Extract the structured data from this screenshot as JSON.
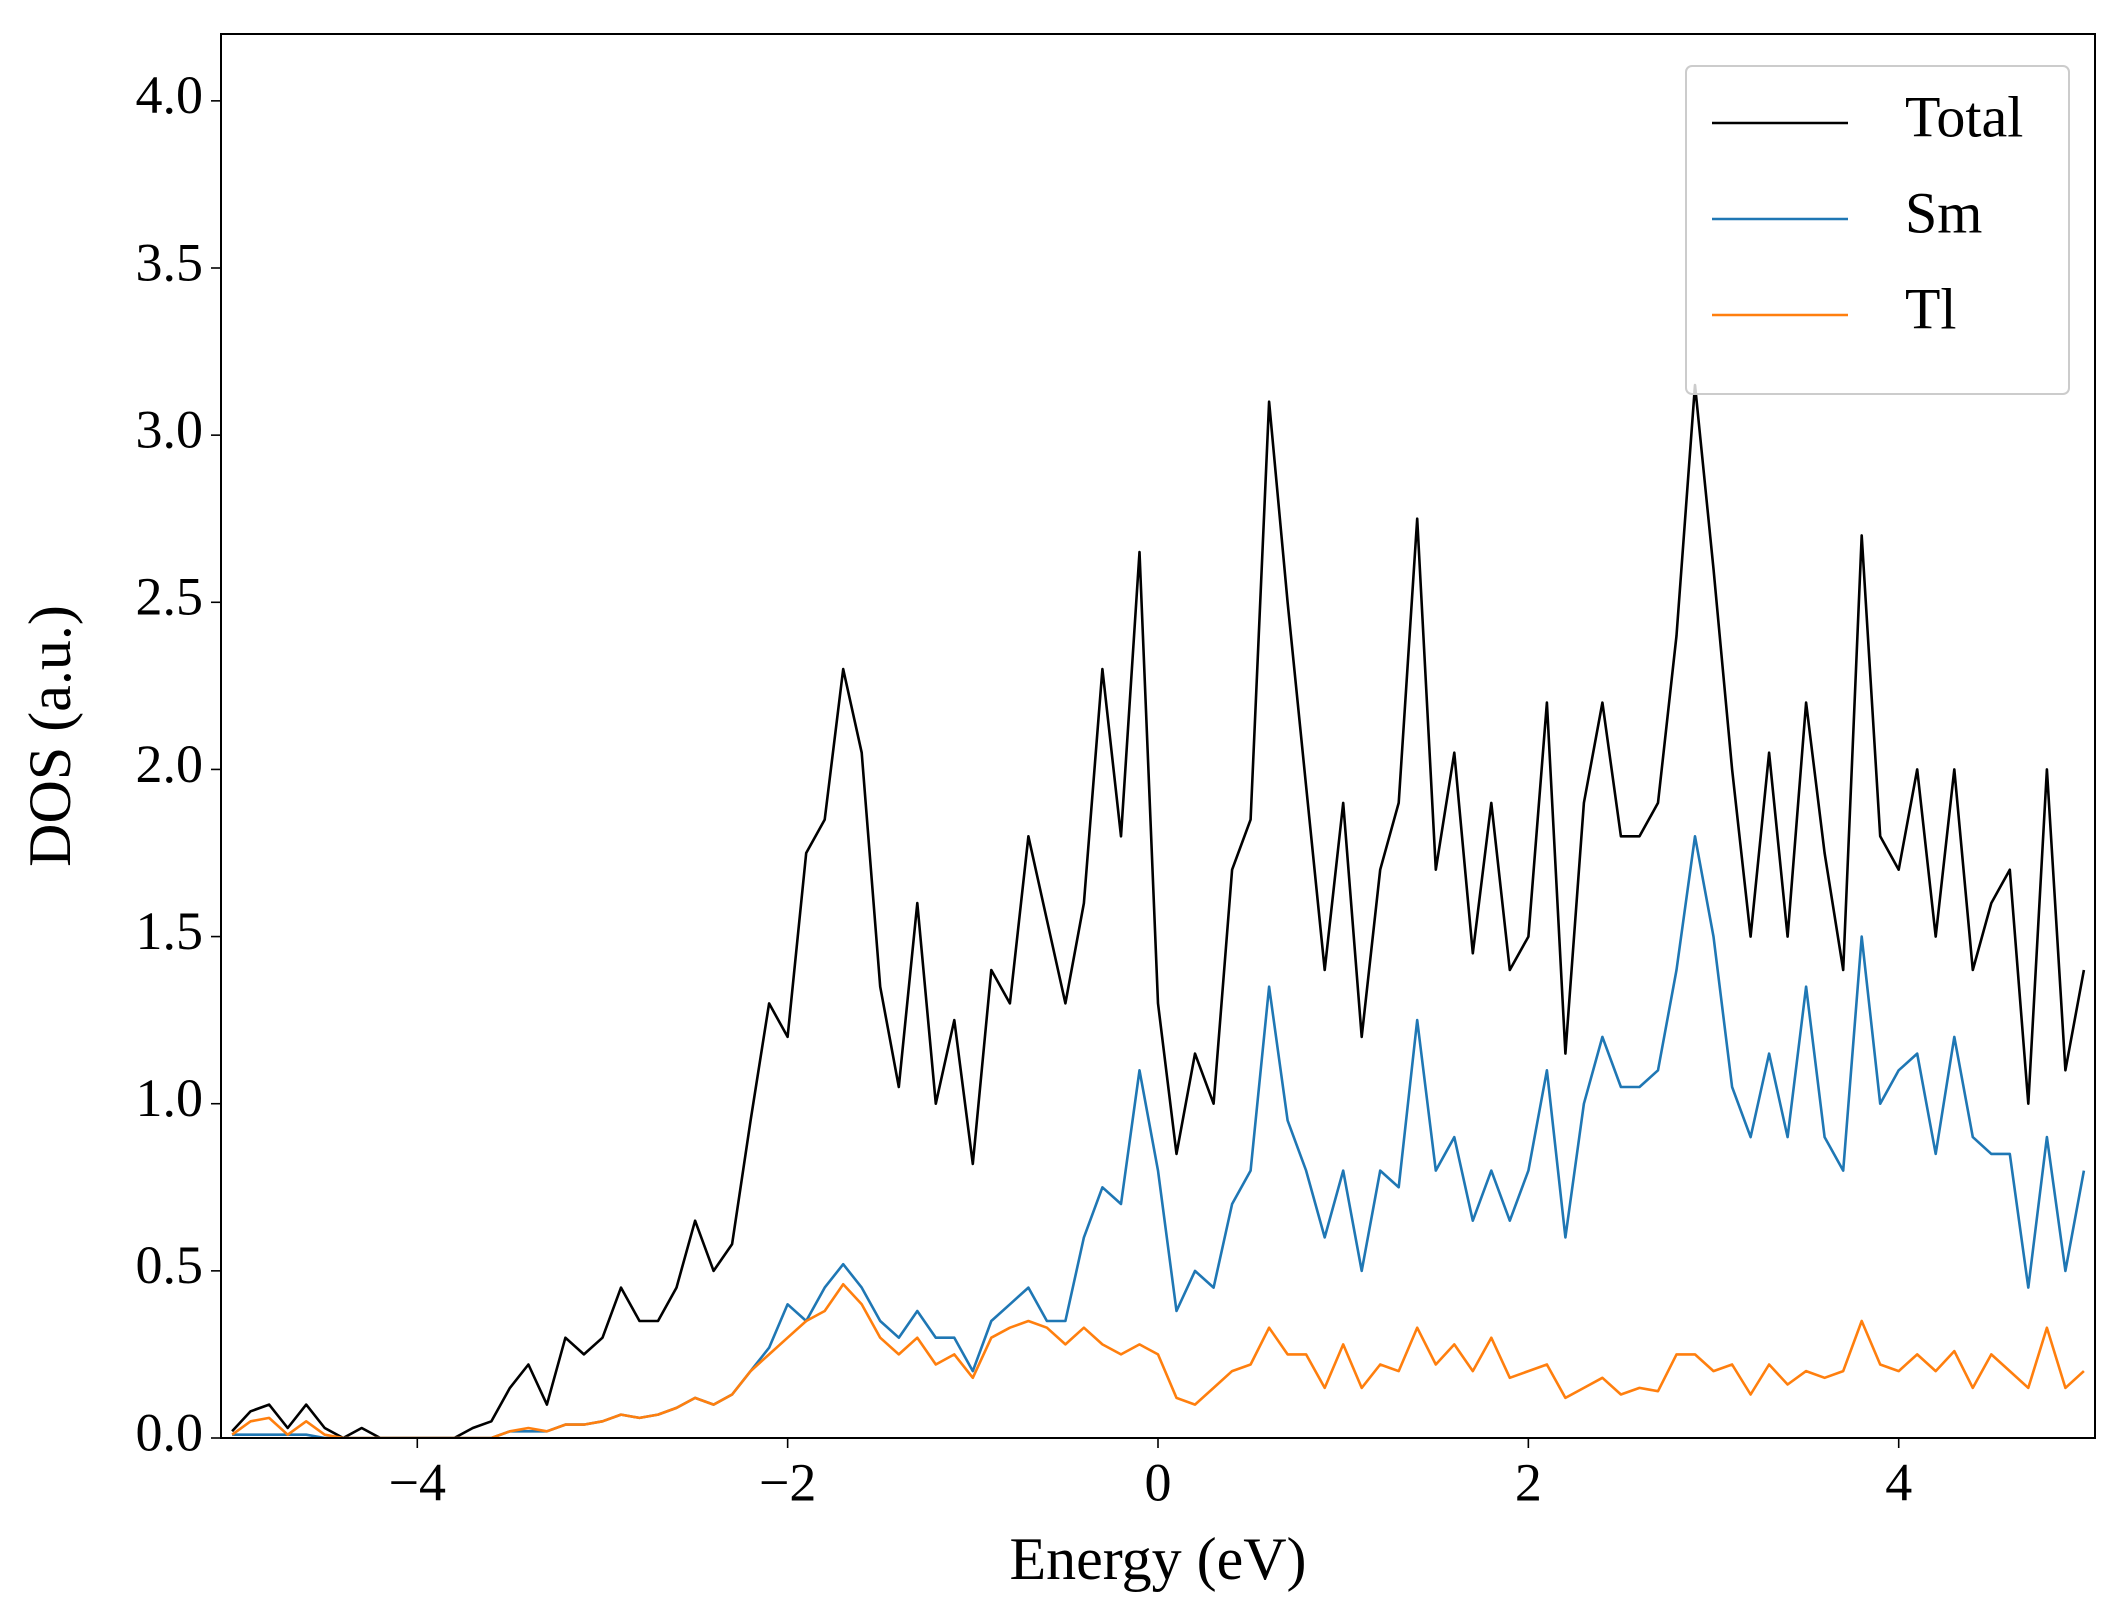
{
  "chart_data": {
    "type": "line",
    "xlabel": "Energy (eV)",
    "ylabel": "DOS (a.u.)",
    "x": [
      -5,
      -4.9,
      -4.8,
      -4.7,
      -4.6,
      -4.5,
      -4.4,
      -4.3,
      -4.2,
      -4.1,
      -4,
      -3.9,
      -3.8,
      -3.7,
      -3.6,
      -3.5,
      -3.4,
      -3.3,
      -3.2,
      -3.1,
      -3,
      -2.9,
      -2.8,
      -2.7,
      -2.6,
      -2.5,
      -2.4,
      -2.3,
      -2.2,
      -2.1,
      -2,
      -1.9,
      -1.8,
      -1.7,
      -1.6,
      -1.5,
      -1.4,
      -1.3,
      -1.2,
      -1.1,
      -1,
      -0.9,
      -0.8,
      -0.7,
      -0.6,
      -0.5,
      -0.4,
      -0.3,
      -0.2,
      -0.1,
      0,
      0.1,
      0.2,
      0.3,
      0.4,
      0.5,
      0.6,
      0.7,
      0.8,
      0.9,
      1,
      1.1,
      1.2,
      1.3,
      1.4,
      1.5,
      1.6,
      1.7,
      1.8,
      1.9,
      2,
      2.1,
      2.2,
      2.3,
      2.4,
      2.5,
      2.6,
      2.7,
      2.8,
      2.9,
      3,
      3.1,
      3.2,
      3.3,
      3.4,
      3.5,
      3.6,
      3.7,
      3.8,
      3.9,
      4,
      4.1,
      4.2,
      4.3,
      4.4,
      4.5,
      4.6,
      4.7,
      4.8,
      4.9,
      5
    ],
    "series": [
      {
        "name": "Total",
        "color": "#000000",
        "values": [
          0.02,
          0.08,
          0.1,
          0.03,
          0.1,
          0.03,
          0,
          0.03,
          0,
          0,
          0,
          0,
          0,
          0.03,
          0.05,
          0.15,
          0.22,
          0.1,
          0.3,
          0.25,
          0.3,
          0.45,
          0.35,
          0.35,
          0.45,
          0.65,
          0.5,
          0.58,
          0.95,
          1.3,
          1.2,
          1.75,
          1.85,
          2.3,
          2.05,
          1.35,
          1.05,
          1.6,
          1.0,
          1.25,
          0.82,
          1.4,
          1.3,
          1.8,
          1.55,
          1.3,
          1.6,
          2.3,
          1.8,
          2.65,
          1.3,
          0.85,
          1.15,
          1.0,
          1.7,
          1.85,
          3.1,
          2.5,
          1.95,
          1.4,
          1.9,
          1.2,
          1.7,
          1.9,
          2.75,
          1.7,
          2.05,
          1.45,
          1.9,
          1.4,
          1.5,
          2.2,
          1.15,
          1.9,
          2.2,
          1.8,
          1.8,
          1.9,
          2.4,
          3.15,
          2.6,
          2.0,
          1.5,
          2.05,
          1.5,
          2.2,
          1.75,
          1.4,
          2.7,
          1.8,
          1.7,
          2.0,
          1.5,
          2.0,
          1.4,
          1.6,
          1.7,
          1.0,
          2.0,
          1.1,
          1.4
        ]
      },
      {
        "name": "Sm",
        "color": "#1f77b4",
        "values": [
          0.01,
          0.01,
          0.01,
          0.01,
          0.01,
          0,
          0,
          0,
          0,
          0,
          0,
          0,
          0,
          0,
          0,
          0.02,
          0.02,
          0.02,
          0.04,
          0.04,
          0.05,
          0.07,
          0.06,
          0.07,
          0.09,
          0.12,
          0.1,
          0.13,
          0.2,
          0.27,
          0.4,
          0.35,
          0.45,
          0.52,
          0.45,
          0.35,
          0.3,
          0.38,
          0.3,
          0.3,
          0.2,
          0.35,
          0.4,
          0.45,
          0.35,
          0.35,
          0.6,
          0.75,
          0.7,
          1.1,
          0.8,
          0.38,
          0.5,
          0.45,
          0.7,
          0.8,
          1.35,
          0.95,
          0.8,
          0.6,
          0.8,
          0.5,
          0.8,
          0.75,
          1.25,
          0.8,
          0.9,
          0.65,
          0.8,
          0.65,
          0.8,
          1.1,
          0.6,
          1.0,
          1.2,
          1.05,
          1.05,
          1.1,
          1.4,
          1.8,
          1.5,
          1.05,
          0.9,
          1.15,
          0.9,
          1.35,
          0.9,
          0.8,
          1.5,
          1.0,
          1.1,
          1.15,
          0.85,
          1.2,
          0.9,
          0.85,
          0.85,
          0.45,
          0.9,
          0.5,
          0.8
        ]
      },
      {
        "name": "Tl",
        "color": "#ff7f0e",
        "values": [
          0.01,
          0.05,
          0.06,
          0.01,
          0.05,
          0.01,
          0,
          0,
          0,
          0,
          0,
          0,
          0,
          0,
          0,
          0.02,
          0.03,
          0.02,
          0.04,
          0.04,
          0.05,
          0.07,
          0.06,
          0.07,
          0.09,
          0.12,
          0.1,
          0.13,
          0.2,
          0.25,
          0.3,
          0.35,
          0.38,
          0.46,
          0.4,
          0.3,
          0.25,
          0.3,
          0.22,
          0.25,
          0.18,
          0.3,
          0.33,
          0.35,
          0.33,
          0.28,
          0.33,
          0.28,
          0.25,
          0.28,
          0.25,
          0.12,
          0.1,
          0.15,
          0.2,
          0.22,
          0.33,
          0.25,
          0.25,
          0.15,
          0.28,
          0.15,
          0.22,
          0.2,
          0.33,
          0.22,
          0.28,
          0.2,
          0.3,
          0.18,
          0.2,
          0.22,
          0.12,
          0.15,
          0.18,
          0.13,
          0.15,
          0.14,
          0.25,
          0.25,
          0.2,
          0.22,
          0.13,
          0.22,
          0.16,
          0.2,
          0.18,
          0.2,
          0.35,
          0.22,
          0.2,
          0.25,
          0.2,
          0.26,
          0.15,
          0.25,
          0.2,
          0.15,
          0.33,
          0.15,
          0.2
        ]
      }
    ],
    "xlim": [
      -5.06,
      5.06
    ],
    "xticks": [
      {
        "value": -4,
        "label": "−4"
      },
      {
        "value": -2,
        "label": "−2"
      },
      0,
      2,
      4
    ],
    "ylim": [
      0,
      4.2
    ],
    "yticks": [
      {
        "value": 0,
        "label": "0.0"
      },
      {
        "value": 0.5,
        "label": "0.5"
      },
      {
        "value": 1,
        "label": "1.0"
      },
      {
        "value": 1.5,
        "label": "1.5"
      },
      {
        "value": 2,
        "label": "2.0"
      },
      {
        "value": 2.5,
        "label": "2.5"
      },
      {
        "value": 3,
        "label": "3.0"
      },
      {
        "value": 3.5,
        "label": "3.5"
      },
      {
        "value": 4,
        "label": "4.0"
      }
    ],
    "legend": "upper right",
    "grid": false
  }
}
